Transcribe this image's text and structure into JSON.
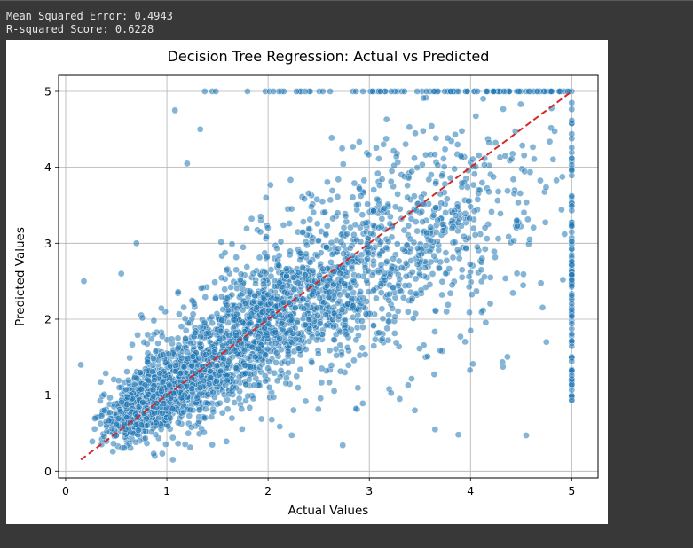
{
  "output": {
    "line1": "Mean Squared Error: 0.4943",
    "line2": "R-squared Score: 0.6228"
  },
  "colors": {
    "points": "#1f77b4",
    "reference_line": "#d62728",
    "grid": "#b0b0b0"
  },
  "chart_data": {
    "type": "scatter",
    "title": "Decision Tree Regression: Actual vs Predicted",
    "xlabel": "Actual Values",
    "ylabel": "Predicted Values",
    "xlim": [
      -0.07,
      5.26
    ],
    "ylim": [
      -0.09,
      5.21
    ],
    "xticks": [
      0,
      1,
      2,
      3,
      4,
      5
    ],
    "yticks": [
      0,
      1,
      2,
      3,
      4,
      5
    ],
    "grid": true,
    "reference_line": {
      "style": "dashed",
      "from": [
        0.15,
        0.15
      ],
      "to": [
        5.0,
        5.0
      ]
    },
    "point_alpha": 0.55,
    "clusters": [
      {
        "cx": 1.0,
        "cy": 1.05,
        "sx": 0.28,
        "sy": 0.32,
        "n": 650,
        "rho": 0.5
      },
      {
        "cx": 1.7,
        "cy": 1.7,
        "sx": 0.45,
        "sy": 0.5,
        "n": 900,
        "rho": 0.55
      },
      {
        "cx": 2.5,
        "cy": 2.4,
        "sx": 0.55,
        "sy": 0.65,
        "n": 650,
        "rho": 0.4
      },
      {
        "cx": 3.4,
        "cy": 3.0,
        "sx": 0.55,
        "sy": 0.8,
        "n": 350,
        "rho": 0.3
      },
      {
        "cx": 4.2,
        "cy": 3.5,
        "sx": 0.5,
        "sy": 0.9,
        "n": 160,
        "rho": 0.2
      },
      {
        "cx": 0.7,
        "cy": 0.75,
        "sx": 0.15,
        "sy": 0.18,
        "n": 300,
        "rho": 0.4
      }
    ],
    "cap_row": {
      "y": 5.0,
      "x_min": 1.1,
      "x_max": 5.0,
      "n": 90
    },
    "cap_column": {
      "x": 5.0,
      "y_min": 0.9,
      "y_max": 5.0,
      "n": 110
    },
    "outliers": [
      {
        "x": 0.15,
        "y": 1.4
      },
      {
        "x": 0.18,
        "y": 2.5
      },
      {
        "x": 0.87,
        "y": 0.23
      },
      {
        "x": 4.55,
        "y": 0.47
      },
      {
        "x": 3.88,
        "y": 0.48
      },
      {
        "x": 3.65,
        "y": 0.55
      },
      {
        "x": 4.0,
        "y": 1.85
      },
      {
        "x": 4.75,
        "y": 1.7
      },
      {
        "x": 1.08,
        "y": 4.75
      },
      {
        "x": 1.2,
        "y": 4.05
      },
      {
        "x": 1.33,
        "y": 4.5
      },
      {
        "x": 0.7,
        "y": 3.0
      },
      {
        "x": 0.55,
        "y": 2.6
      },
      {
        "x": 3.3,
        "y": 0.95
      },
      {
        "x": 3.45,
        "y": 0.8
      }
    ],
    "seed": 42
  }
}
